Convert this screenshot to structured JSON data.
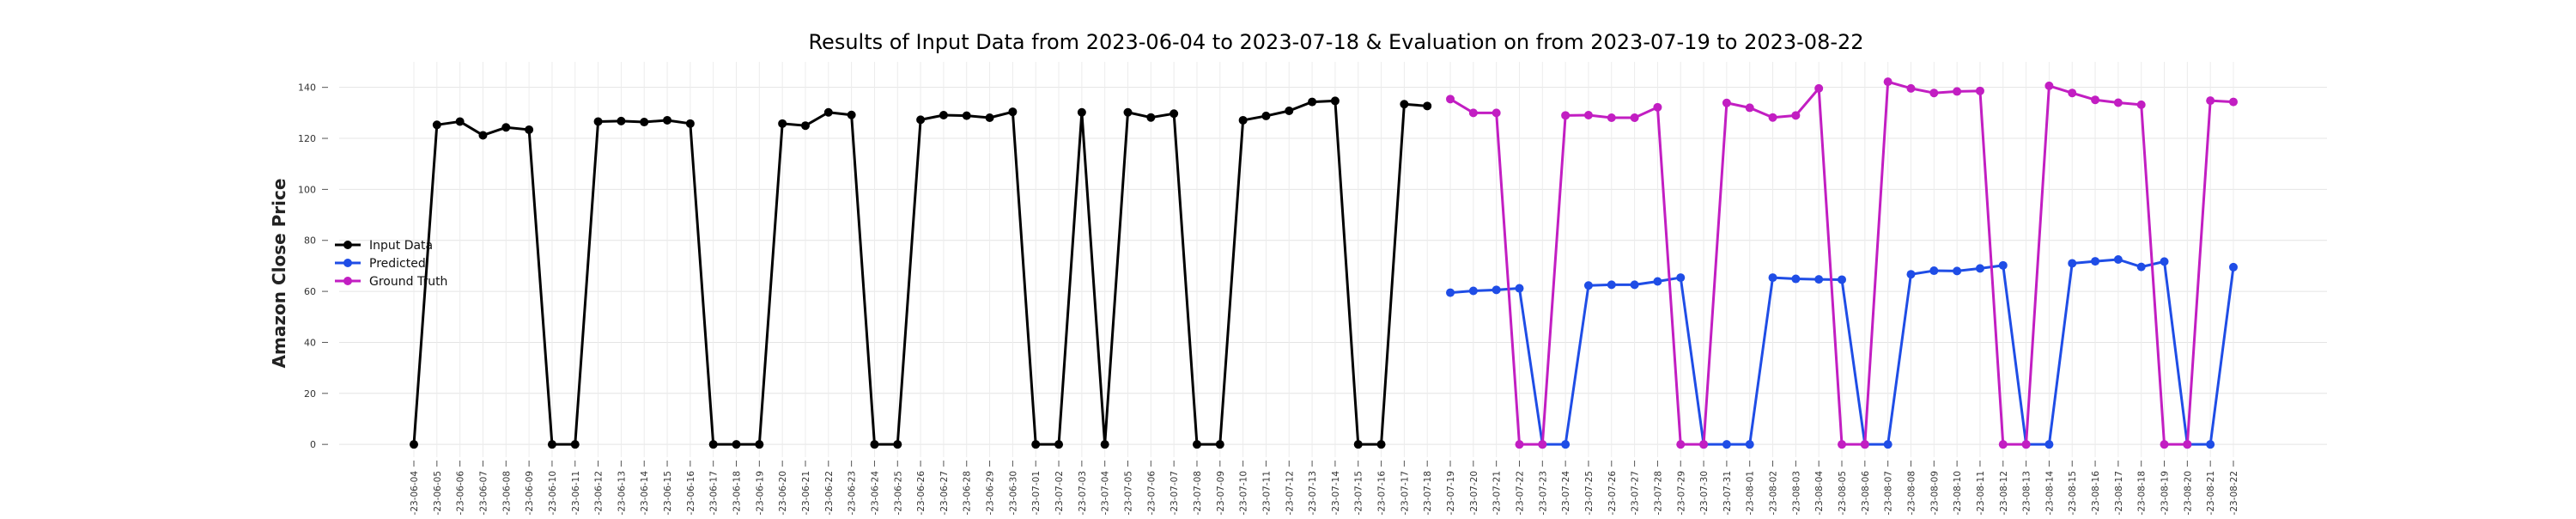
{
  "chart_data": {
    "type": "line",
    "title": "Results of Input Data from 2023-06-04 to 2023-07-18 & Evaluation on from 2023-07-19 to 2023-08-22",
    "xlabel": "",
    "ylabel": "Amazon Close Price",
    "ylim": [
      -5,
      150
    ],
    "yticks": [
      0,
      20,
      40,
      60,
      80,
      100,
      120,
      140
    ],
    "grid": true,
    "legend_position": "left",
    "x": [
      "2023-06-04",
      "2023-06-05",
      "2023-06-06",
      "2023-06-07",
      "2023-06-08",
      "2023-06-09",
      "2023-06-10",
      "2023-06-11",
      "2023-06-12",
      "2023-06-13",
      "2023-06-14",
      "2023-06-15",
      "2023-06-16",
      "2023-06-17",
      "2023-06-18",
      "2023-06-19",
      "2023-06-20",
      "2023-06-21",
      "2023-06-22",
      "2023-06-23",
      "2023-06-24",
      "2023-06-25",
      "2023-06-26",
      "2023-06-27",
      "2023-06-28",
      "2023-06-29",
      "2023-06-30",
      "2023-07-01",
      "2023-07-02",
      "2023-07-03",
      "2023-07-04",
      "2023-07-05",
      "2023-07-06",
      "2023-07-07",
      "2023-07-08",
      "2023-07-09",
      "2023-07-10",
      "2023-07-11",
      "2023-07-12",
      "2023-07-13",
      "2023-07-14",
      "2023-07-15",
      "2023-07-16",
      "2023-07-17",
      "2023-07-18",
      "2023-07-19",
      "2023-07-20",
      "2023-07-21",
      "2023-07-22",
      "2023-07-23",
      "2023-07-24",
      "2023-07-25",
      "2023-07-26",
      "2023-07-27",
      "2023-07-28",
      "2023-07-29",
      "2023-07-30",
      "2023-07-31",
      "2023-08-01",
      "2023-08-02",
      "2023-08-03",
      "2023-08-04",
      "2023-08-05",
      "2023-08-06",
      "2023-08-07",
      "2023-08-08",
      "2023-08-09",
      "2023-08-10",
      "2023-08-11",
      "2023-08-12",
      "2023-08-13",
      "2023-08-14",
      "2023-08-15",
      "2023-08-16",
      "2023-08-17",
      "2023-08-18",
      "2023-08-19",
      "2023-08-20",
      "2023-08-21",
      "2023-08-22"
    ],
    "x_tick_labels": [
      "-23-06-04",
      "-23-06-05",
      "-23-06-06",
      "-23-06-07",
      "-23-06-08",
      "-23-06-09",
      "-23-06-10",
      "-23-06-11",
      "-23-06-12",
      "-23-06-13",
      "-23-06-14",
      "-23-06-15",
      "-23-06-16",
      "-23-06-17",
      "-23-06-18",
      "-23-06-19",
      "-23-06-20",
      "-23-06-21",
      "-23-06-22",
      "-23-06-23",
      "-23-06-24",
      "-23-06-25",
      "-23-06-26",
      "-23-06-27",
      "-23-06-28",
      "-23-06-29",
      "-23-06-30",
      "-23-07-01",
      "-23-07-02",
      "-23-07-03",
      "-23-07-04",
      "-23-07-05",
      "-23-07-06",
      "-23-07-07",
      "-23-07-08",
      "-23-07-09",
      "-23-07-10",
      "-23-07-11",
      "-23-07-12",
      "-23-07-13",
      "-23-07-14",
      "-23-07-15",
      "-23-07-16",
      "-23-07-17",
      "-23-07-18",
      "-23-07-19",
      "-23-07-20",
      "-23-07-21",
      "-23-07-22",
      "-23-07-23",
      "-23-07-24",
      "-23-07-25",
      "-23-07-26",
      "-23-07-27",
      "-23-07-28",
      "-23-07-29",
      "-23-07-30",
      "-23-07-31",
      "-23-08-01",
      "-23-08-02",
      "-23-08-03",
      "-23-08-04",
      "-23-08-05",
      "-23-08-06",
      "-23-08-07",
      "-23-08-08",
      "-23-08-09",
      "-23-08-10",
      "-23-08-11",
      "-23-08-12",
      "-23-08-13",
      "-23-08-14",
      "-23-08-15",
      "-23-08-16",
      "-23-08-17",
      "-23-08-18",
      "-23-08-19",
      "-23-08-20",
      "-23-08-21",
      "-23-08-22"
    ],
    "series": [
      {
        "name": "Input Data",
        "color": "#000000",
        "x": [
          "2023-06-04",
          "2023-06-05",
          "2023-06-06",
          "2023-06-07",
          "2023-06-08",
          "2023-06-09",
          "2023-06-10",
          "2023-06-11",
          "2023-06-12",
          "2023-06-13",
          "2023-06-14",
          "2023-06-15",
          "2023-06-16",
          "2023-06-17",
          "2023-06-18",
          "2023-06-19",
          "2023-06-20",
          "2023-06-21",
          "2023-06-22",
          "2023-06-23",
          "2023-06-24",
          "2023-06-25",
          "2023-06-26",
          "2023-06-27",
          "2023-06-28",
          "2023-06-29",
          "2023-06-30",
          "2023-07-01",
          "2023-07-02",
          "2023-07-03",
          "2023-07-04",
          "2023-07-05",
          "2023-07-06",
          "2023-07-07",
          "2023-07-08",
          "2023-07-09",
          "2023-07-10",
          "2023-07-11",
          "2023-07-12",
          "2023-07-13",
          "2023-07-14",
          "2023-07-15",
          "2023-07-16",
          "2023-07-17",
          "2023-07-18"
        ],
        "values": [
          0,
          125.3,
          126.6,
          121.2,
          124.3,
          123.4,
          0,
          0,
          126.6,
          126.8,
          126.4,
          127.1,
          125.8,
          0,
          0,
          0,
          125.8,
          125.0,
          130.2,
          129.2,
          0,
          0,
          127.3,
          129.1,
          128.9,
          128.1,
          130.4,
          0,
          0,
          130.2,
          0,
          130.2,
          128.2,
          129.7,
          0,
          0,
          127.1,
          128.8,
          130.8,
          134.3,
          134.7,
          0,
          0,
          133.4,
          132.7
        ]
      },
      {
        "name": "Predicted",
        "color": "#1f4de6",
        "x": [
          "2023-07-19",
          "2023-07-20",
          "2023-07-21",
          "2023-07-22",
          "2023-07-23",
          "2023-07-24",
          "2023-07-25",
          "2023-07-26",
          "2023-07-27",
          "2023-07-28",
          "2023-07-29",
          "2023-07-30",
          "2023-07-31",
          "2023-08-01",
          "2023-08-02",
          "2023-08-03",
          "2023-08-04",
          "2023-08-05",
          "2023-08-06",
          "2023-08-07",
          "2023-08-08",
          "2023-08-09",
          "2023-08-10",
          "2023-08-11",
          "2023-08-12",
          "2023-08-13",
          "2023-08-14",
          "2023-08-15",
          "2023-08-16",
          "2023-08-17",
          "2023-08-18",
          "2023-08-19",
          "2023-08-20",
          "2023-08-21",
          "2023-08-22"
        ],
        "values": [
          59.5,
          60.2,
          60.6,
          61.2,
          0,
          0,
          62.3,
          62.6,
          62.6,
          63.9,
          65.4,
          0,
          0,
          0,
          65.4,
          64.9,
          64.7,
          64.6,
          0,
          0,
          66.7,
          68.1,
          68.0,
          69.0,
          70.2,
          0,
          0,
          71.0,
          71.8,
          72.5,
          69.6,
          71.7,
          0,
          0,
          69.5
        ]
      },
      {
        "name": "Ground Truth",
        "color": "#c21ec2",
        "x": [
          "2023-07-19",
          "2023-07-20",
          "2023-07-21",
          "2023-07-22",
          "2023-07-23",
          "2023-07-24",
          "2023-07-25",
          "2023-07-26",
          "2023-07-27",
          "2023-07-28",
          "2023-07-29",
          "2023-07-30",
          "2023-07-31",
          "2023-08-01",
          "2023-08-02",
          "2023-08-03",
          "2023-08-04",
          "2023-08-05",
          "2023-08-06",
          "2023-08-07",
          "2023-08-08",
          "2023-08-09",
          "2023-08-10",
          "2023-08-11",
          "2023-08-12",
          "2023-08-13",
          "2023-08-14",
          "2023-08-15",
          "2023-08-16",
          "2023-08-17",
          "2023-08-18",
          "2023-08-19",
          "2023-08-20",
          "2023-08-21",
          "2023-08-22"
        ],
        "values": [
          135.4,
          130.0,
          130.0,
          0,
          0,
          129.0,
          129.1,
          128.1,
          128.1,
          132.2,
          0,
          0,
          133.9,
          132.0,
          128.2,
          129.0,
          139.6,
          0,
          0,
          142.2,
          139.6,
          137.8,
          138.4,
          138.6,
          0,
          0,
          140.6,
          137.8,
          135.1,
          134.0,
          133.2,
          0,
          0,
          134.8,
          134.3
        ]
      }
    ]
  }
}
